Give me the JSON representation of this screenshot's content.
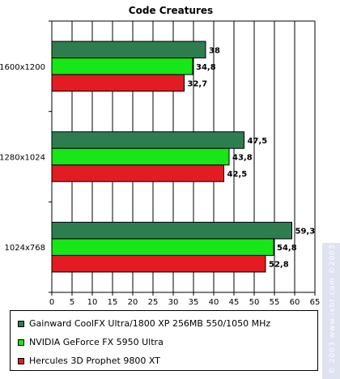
{
  "chart_data": {
    "type": "bar",
    "orientation": "horizontal",
    "title": "Code Creatures",
    "categories": [
      "1600x1200",
      "1280x1024",
      "1024x768"
    ],
    "series": [
      {
        "name": "Gainward CoolFX Ultra/1800 XP 256MB 550/1050 MHz",
        "color": "#2e7d4f",
        "values": [
          38,
          47.5,
          59.3
        ],
        "labels": [
          "38",
          "47,5",
          "59,3"
        ]
      },
      {
        "name": "NVIDIA GeForce FX 5950 Ultra",
        "color": "#17e617",
        "values": [
          34.8,
          43.8,
          54.8
        ],
        "labels": [
          "34,8",
          "43,8",
          "54,8"
        ]
      },
      {
        "name": "Hercules 3D Prophet 9800 XT",
        "color": "#e31b23",
        "values": [
          32.7,
          42.5,
          52.8
        ],
        "labels": [
          "32,7",
          "42,5",
          "52,8"
        ]
      }
    ],
    "xlim": [
      0,
      65
    ],
    "xticks": [
      "0",
      "5",
      "10",
      "15",
      "20",
      "25",
      "30",
      "35",
      "40",
      "45",
      "50",
      "55",
      "60",
      "65"
    ],
    "grid": true,
    "legend_position": "bottom"
  },
  "watermark": "© 2003 www.ixbt.com  ©2003 digit-life.com"
}
